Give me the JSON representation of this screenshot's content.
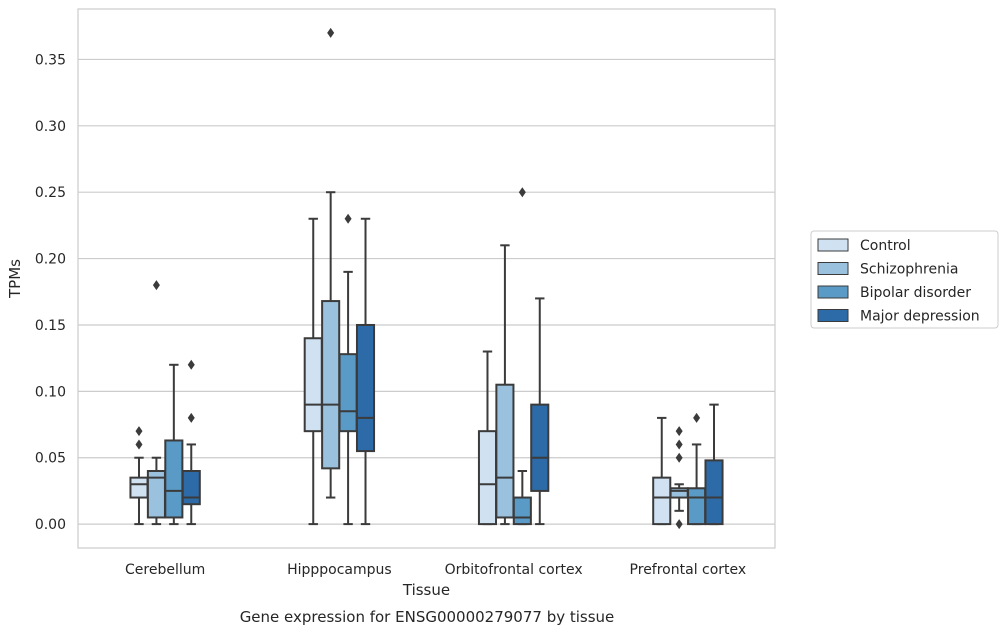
{
  "chart_data": {
    "type": "box",
    "caption": "Gene expression for ENSG00000279077 by tissue",
    "xlabel": "Tissue",
    "ylabel": "TPMs",
    "ylim": [
      -0.018,
      0.388
    ],
    "yticks": [
      0.0,
      0.05,
      0.1,
      0.15,
      0.2,
      0.25,
      0.3,
      0.35
    ],
    "ytick_labels": [
      "0.00",
      "0.05",
      "0.10",
      "0.15",
      "0.20",
      "0.25",
      "0.30",
      "0.35"
    ],
    "grid": "horizontal",
    "legend_position": "right",
    "categories": [
      "Cerebellum",
      "Hipppocampus",
      "Orbitofrontal cortex",
      "Prefrontal cortex"
    ],
    "series": [
      {
        "name": "Control",
        "color": "#d0e1f2",
        "boxes": [
          {
            "whislo": 0.0,
            "q1": 0.02,
            "med": 0.03,
            "q3": 0.035,
            "whishi": 0.05,
            "fliers": [
              0.06,
              0.07
            ]
          },
          {
            "whislo": 0.0,
            "q1": 0.07,
            "med": 0.09,
            "q3": 0.14,
            "whishi": 0.23,
            "fliers": []
          },
          {
            "whislo": 0.0,
            "q1": 0.0,
            "med": 0.03,
            "q3": 0.07,
            "whishi": 0.13,
            "fliers": []
          },
          {
            "whislo": 0.0,
            "q1": 0.0,
            "med": 0.02,
            "q3": 0.035,
            "whishi": 0.08,
            "fliers": []
          }
        ]
      },
      {
        "name": "Schizophrenia",
        "color": "#9ac2de",
        "boxes": [
          {
            "whislo": 0.0,
            "q1": 0.005,
            "med": 0.035,
            "q3": 0.04,
            "whishi": 0.05,
            "fliers": [
              0.18
            ]
          },
          {
            "whislo": 0.02,
            "q1": 0.042,
            "med": 0.09,
            "q3": 0.168,
            "whishi": 0.25,
            "fliers": [
              0.37
            ]
          },
          {
            "whislo": 0.0,
            "q1": 0.005,
            "med": 0.035,
            "q3": 0.105,
            "whishi": 0.21,
            "fliers": []
          },
          {
            "whislo": 0.01,
            "q1": 0.02,
            "med": 0.025,
            "q3": 0.027,
            "whishi": 0.03,
            "fliers": [
              0.0,
              0.05,
              0.06,
              0.07
            ]
          }
        ]
      },
      {
        "name": "Bipolar disorder",
        "color": "#5a9ac6",
        "boxes": [
          {
            "whislo": 0.0,
            "q1": 0.005,
            "med": 0.025,
            "q3": 0.063,
            "whishi": 0.12,
            "fliers": []
          },
          {
            "whislo": 0.0,
            "q1": 0.07,
            "med": 0.085,
            "q3": 0.128,
            "whishi": 0.19,
            "fliers": [
              0.23
            ]
          },
          {
            "whislo": 0.0,
            "q1": 0.0,
            "med": 0.005,
            "q3": 0.02,
            "whishi": 0.04,
            "fliers": [
              0.25
            ]
          },
          {
            "whislo": 0.0,
            "q1": 0.0,
            "med": 0.02,
            "q3": 0.027,
            "whishi": 0.06,
            "fliers": [
              0.08
            ]
          }
        ]
      },
      {
        "name": "Major depression",
        "color": "#2d6aa8",
        "boxes": [
          {
            "whislo": 0.0,
            "q1": 0.015,
            "med": 0.02,
            "q3": 0.04,
            "whishi": 0.06,
            "fliers": [
              0.08,
              0.12
            ]
          },
          {
            "whislo": 0.0,
            "q1": 0.055,
            "med": 0.08,
            "q3": 0.15,
            "whishi": 0.23,
            "fliers": []
          },
          {
            "whislo": 0.0,
            "q1": 0.025,
            "med": 0.05,
            "q3": 0.09,
            "whishi": 0.17,
            "fliers": []
          },
          {
            "whislo": 0.0,
            "q1": 0.0,
            "med": 0.02,
            "q3": 0.048,
            "whishi": 0.09,
            "fliers": []
          }
        ]
      }
    ]
  }
}
